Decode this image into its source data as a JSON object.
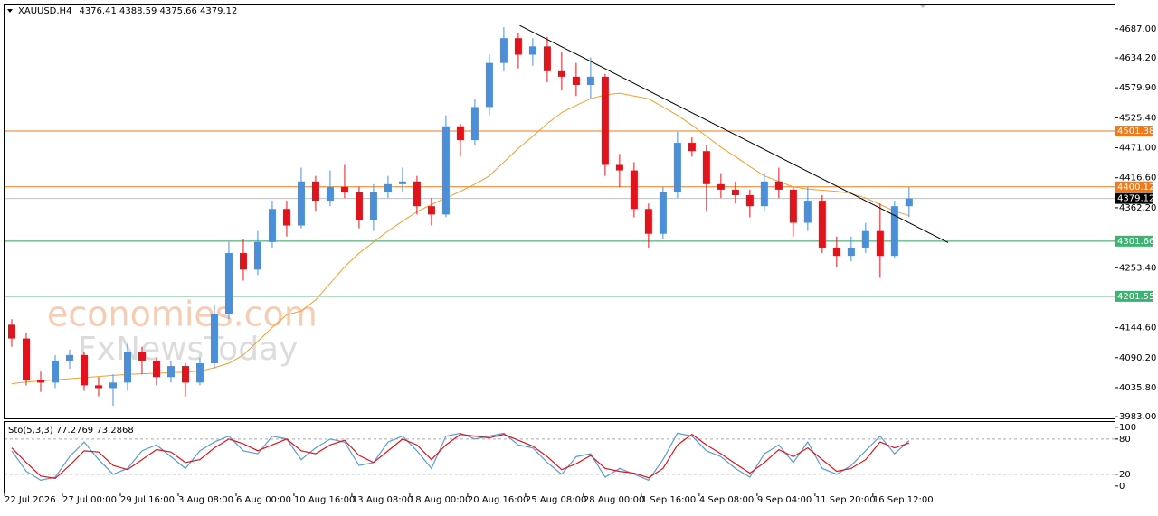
{
  "chart_data": [
    {
      "type": "candlestick",
      "title": "XAUUSD,H4",
      "subtitle": "4376.41 4388.59 4375.66 4379.12",
      "watermark": [
        "economies.com",
        "FxNewsToday"
      ],
      "up_color": "#4a8fd8",
      "down_color": "#e0141c",
      "xlim": [
        -0.5,
        76.2
      ],
      "ylim": [
        3980,
        4731
      ],
      "xticks": [
        {
          "value": 0,
          "label": "22 Jul 2026"
        },
        {
          "value": 4,
          "label": "27 Jul 00:00"
        },
        {
          "value": 8,
          "label": "29 Jul 16:00"
        },
        {
          "value": 12,
          "label": "3 Aug 08:00"
        },
        {
          "value": 16,
          "label": "6 Aug 00:00"
        },
        {
          "value": 20,
          "label": "10 Aug 16:00"
        },
        {
          "value": 24,
          "label": "13 Aug 08:00"
        },
        {
          "value": 28,
          "label": "18 Aug 00:00"
        },
        {
          "value": 32,
          "label": "20 Aug 16:00"
        },
        {
          "value": 36,
          "label": "25 Aug 08:00"
        },
        {
          "value": 40,
          "label": "28 Aug 00:00"
        },
        {
          "value": 44,
          "label": "1 Sep 16:00"
        },
        {
          "value": 48,
          "label": "4 Sep 08:00"
        },
        {
          "value": 52,
          "label": "9 Sep 04:00"
        },
        {
          "value": 56,
          "label": "11 Sep 20:00"
        },
        {
          "value": 60,
          "label": "16 Sep 12:00"
        }
      ],
      "yticks": [
        {
          "value": 4687,
          "label": "4687.00"
        },
        {
          "value": 4634.2,
          "label": "4634.20"
        },
        {
          "value": 4579.9,
          "label": "4579.90"
        },
        {
          "value": 4525.4,
          "label": "4525.40"
        },
        {
          "value": 4471,
          "label": "4471.00"
        },
        {
          "value": 4416.6,
          "label": "4416.60"
        },
        {
          "value": 4362.2,
          "label": "4362.20"
        },
        {
          "value": 4253.4,
          "label": "4253.40"
        },
        {
          "value": 4144.6,
          "label": "4144.60"
        },
        {
          "value": 4090.2,
          "label": "4090.20"
        },
        {
          "value": 4035.8,
          "label": "4035.80"
        },
        {
          "value": 3983,
          "label": "3983.00"
        }
      ],
      "open": [
        4150,
        4125,
        4050,
        4045,
        4085,
        4095,
        4040,
        4035,
        4045,
        4100,
        4085,
        4055,
        4075,
        4045,
        4080,
        4170,
        4280,
        4250,
        4300,
        4360,
        4330,
        4410,
        4375,
        4400,
        4390,
        4340,
        4390,
        4405,
        4410,
        4365,
        4350,
        4510,
        4485,
        4545,
        4625,
        4670,
        4640,
        4655,
        4610,
        4600,
        4585,
        4600,
        4440,
        4430,
        4360,
        4315,
        4390,
        4480,
        4465,
        4405,
        4395,
        4385,
        4365,
        4410,
        4395,
        4335,
        4375,
        4290,
        4275,
        4290,
        4320,
        4275,
        4365
      ],
      "high": [
        4160,
        4135,
        4065,
        4095,
        4105,
        4100,
        4055,
        4060,
        4115,
        4110,
        4090,
        4085,
        4080,
        4090,
        4185,
        4300,
        4305,
        4320,
        4375,
        4375,
        4435,
        4420,
        4430,
        4440,
        4400,
        4405,
        4420,
        4435,
        4420,
        4380,
        4530,
        4515,
        4560,
        4640,
        4690,
        4680,
        4670,
        4672,
        4645,
        4625,
        4635,
        4605,
        4460,
        4445,
        4370,
        4400,
        4500,
        4490,
        4475,
        4425,
        4410,
        4395,
        4425,
        4435,
        4400,
        4400,
        4385,
        4310,
        4310,
        4335,
        4370,
        4375,
        4400
      ],
      "low": [
        4110,
        4040,
        4028,
        4035,
        4070,
        4030,
        4020,
        4003,
        4030,
        4060,
        4040,
        4045,
        4020,
        4040,
        4070,
        4160,
        4230,
        4240,
        4290,
        4310,
        4325,
        4355,
        4365,
        4380,
        4325,
        4320,
        4380,
        4390,
        4350,
        4330,
        4345,
        4455,
        4475,
        4530,
        4610,
        4615,
        4620,
        4590,
        4575,
        4565,
        4560,
        4420,
        4400,
        4345,
        4290,
        4305,
        4380,
        4455,
        4355,
        4380,
        4370,
        4345,
        4355,
        4380,
        4310,
        4320,
        4280,
        4255,
        4265,
        4280,
        4235,
        4270,
        4345
      ],
      "close": [
        4125,
        4050,
        4045,
        4085,
        4095,
        4040,
        4035,
        4045,
        4100,
        4085,
        4055,
        4075,
        4045,
        4080,
        4170,
        4280,
        4250,
        4300,
        4360,
        4330,
        4410,
        4375,
        4400,
        4390,
        4340,
        4390,
        4405,
        4410,
        4365,
        4350,
        4510,
        4485,
        4545,
        4625,
        4670,
        4640,
        4655,
        4610,
        4600,
        4585,
        4600,
        4440,
        4430,
        4360,
        4315,
        4390,
        4480,
        4465,
        4405,
        4395,
        4385,
        4365,
        4410,
        4395,
        4335,
        4375,
        4290,
        4275,
        4290,
        4320,
        4275,
        4365,
        4379.12
      ],
      "series": [
        {
          "color": "#f0a030",
          "values": [
            4043,
            4046,
            4048,
            4050,
            4052,
            4054,
            4056,
            4058,
            4060,
            4061,
            4062,
            4063,
            4064,
            4066,
            4072,
            4080,
            4095,
            4120,
            4145,
            4168,
            4175,
            4195,
            4225,
            4255,
            4280,
            4300,
            4320,
            4338,
            4355,
            4368,
            4380,
            4392,
            4405,
            4420,
            4445,
            4470,
            4492,
            4515,
            4535,
            4548,
            4560,
            4567,
            4570,
            4565,
            4560,
            4545,
            4530,
            4512,
            4492,
            4472,
            4455,
            4437,
            4420,
            4410,
            4400,
            4396,
            4394,
            4392,
            4388,
            4380,
            4368,
            4356,
            4348
          ]
        }
      ],
      "hlines": [
        {
          "value": 4501.38,
          "color": "#f07a1a",
          "label_bg": "#f07a1a"
        },
        {
          "value": 4400.12,
          "color": "#f07a1a",
          "label_bg": "#f07a1a"
        },
        {
          "value": 4301.66,
          "color": "#2e9e5a",
          "label_bg": "#3cb371"
        },
        {
          "value": 4201.55,
          "color": "#2e9e5a",
          "label_bg": "#3cb371"
        },
        {
          "value": 4379.12,
          "color": "#c0c0c0",
          "label_bg": "#000000"
        }
      ],
      "trendline": {
        "x": [
          35.1,
          64.7
        ],
        "y": [
          4693,
          4299
        ],
        "color": "#000000"
      }
    },
    {
      "type": "line",
      "title": "Sto(5,3,3) 77.2769 73.2868",
      "xlim": [
        -0.5,
        76.2
      ],
      "ylim": [
        -11,
        109
      ],
      "yticks": [
        0,
        20,
        80,
        100
      ],
      "levels": [
        20,
        80
      ],
      "series": [
        {
          "color": "#5b9bd5",
          "values": [
            60,
            25,
            10,
            15,
            50,
            75,
            45,
            20,
            30,
            60,
            70,
            50,
            30,
            60,
            75,
            85,
            60,
            55,
            85,
            80,
            45,
            65,
            80,
            75,
            35,
            40,
            75,
            85,
            60,
            30,
            85,
            90,
            80,
            85,
            90,
            70,
            65,
            40,
            20,
            50,
            55,
            15,
            30,
            20,
            10,
            45,
            90,
            85,
            60,
            50,
            30,
            15,
            55,
            70,
            40,
            75,
            30,
            20,
            35,
            60,
            85,
            55,
            77.2769
          ]
        },
        {
          "color": "#e0141c",
          "values": [
            65,
            40,
            17,
            13,
            35,
            60,
            58,
            35,
            28,
            45,
            62,
            58,
            40,
            45,
            65,
            80,
            72,
            60,
            70,
            80,
            60,
            55,
            70,
            78,
            52,
            40,
            60,
            80,
            70,
            45,
            70,
            88,
            85,
            82,
            88,
            78,
            68,
            50,
            28,
            38,
            52,
            30,
            25,
            22,
            14,
            30,
            70,
            88,
            70,
            55,
            38,
            22,
            40,
            62,
            50,
            65,
            45,
            25,
            30,
            45,
            75,
            65,
            73.2868
          ]
        }
      ]
    }
  ]
}
